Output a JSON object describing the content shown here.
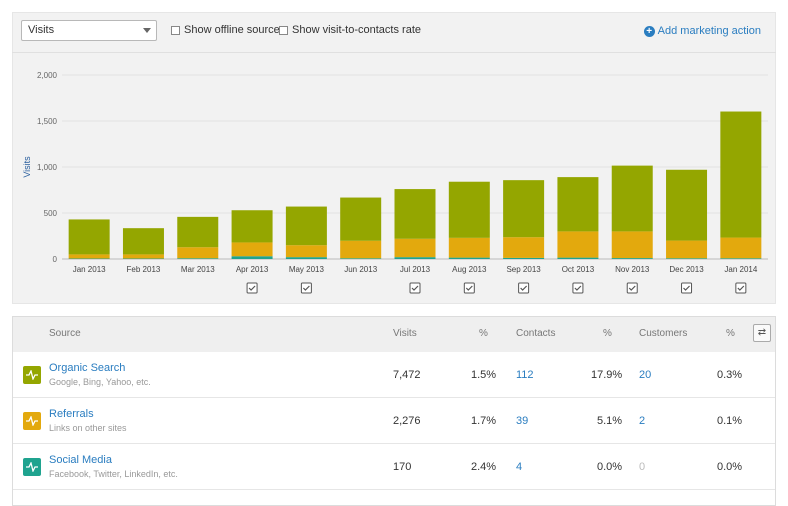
{
  "toolbar": {
    "metric_select": "Visits",
    "show_offline_label": "Show offline sources",
    "show_rate_label": "Show visit-to-contacts rate",
    "add_action_label": "Add marketing action"
  },
  "chart_data": {
    "type": "bar",
    "stacked": true,
    "ylabel": "Visits",
    "ylim": [
      0,
      2000
    ],
    "yticks": [
      "2,000",
      "1,500",
      "1,000",
      "500",
      "0"
    ],
    "categories": [
      "Jan 2013",
      "Feb 2013",
      "Mar 2013",
      "Apr 2013",
      "May 2013",
      "Jun 2013",
      "Jul 2013",
      "Aug 2013",
      "Sep 2013",
      "Oct 2013",
      "Nov 2013",
      "Dec 2013",
      "Jan 2014"
    ],
    "series": [
      {
        "name": "Social Media",
        "color": "#1fa38f",
        "values": [
          5,
          5,
          8,
          30,
          20,
          8,
          20,
          15,
          12,
          15,
          10,
          8,
          8
        ]
      },
      {
        "name": "Referrals",
        "color": "#e3a90d",
        "values": [
          45,
          45,
          120,
          150,
          130,
          190,
          200,
          215,
          225,
          285,
          290,
          192,
          225
        ]
      },
      {
        "name": "Organic Search",
        "color": "#94a600",
        "values": [
          380,
          285,
          330,
          350,
          420,
          470,
          540,
          610,
          620,
          590,
          715,
          770,
          1370
        ]
      }
    ],
    "marker_months": [
      "Apr 2013",
      "May 2013",
      "Jul 2013",
      "Aug 2013",
      "Sep 2013",
      "Oct 2013",
      "Nov 2013",
      "Dec 2013",
      "Jan 2014"
    ]
  },
  "table": {
    "headers": [
      "Source",
      "Visits",
      "%",
      "Contacts",
      "%",
      "Customers",
      "%"
    ],
    "rows": [
      {
        "name": "Organic Search",
        "sub": "Google, Bing, Yahoo, etc.",
        "color": "#94a600",
        "visits": "7,472",
        "visits_pct": "1.5%",
        "contacts": "112",
        "contacts_pct": "17.9%",
        "customers": "20",
        "customers_pct": "0.3%"
      },
      {
        "name": "Referrals",
        "sub": "Links on other sites",
        "color": "#e3a90d",
        "visits": "2,276",
        "visits_pct": "1.7%",
        "contacts": "39",
        "contacts_pct": "5.1%",
        "customers": "2",
        "customers_pct": "0.1%"
      },
      {
        "name": "Social Media",
        "sub": "Facebook, Twitter, LinkedIn, etc.",
        "color": "#1fa38f",
        "visits": "170",
        "visits_pct": "2.4%",
        "contacts": "4",
        "contacts_pct": "0.0%",
        "customers": "0",
        "customers_pct": "0.0%"
      }
    ]
  }
}
